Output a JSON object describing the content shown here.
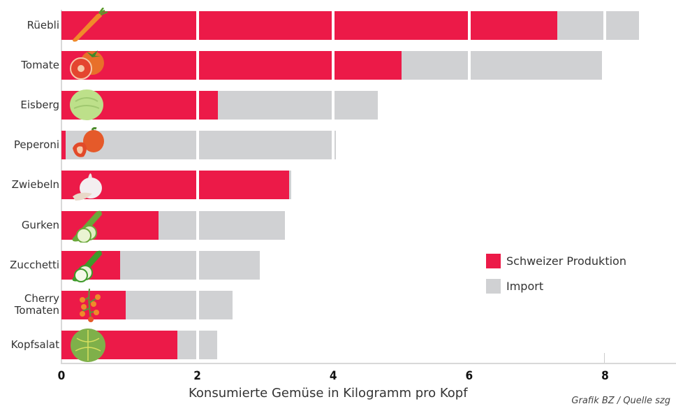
{
  "chart_data": {
    "type": "bar",
    "orientation": "horizontal",
    "stacked": true,
    "title": "",
    "xlabel": "Konsumierte Gemüse in Kilogramm pro Kopf",
    "ylabel": "",
    "xlim": [
      0,
      9
    ],
    "xticks": [
      "0",
      "2",
      "4",
      "6",
      "8"
    ],
    "categories": [
      "Rüebli",
      "Tomate",
      "Eisberg",
      "Peperoni",
      "Zwiebeln",
      "Gurken",
      "Zucchetti",
      "Cherry\nTomaten",
      "Kopfsalat"
    ],
    "series": [
      {
        "name": "Schweizer Produktion",
        "color": "#ec1a48",
        "values": [
          7.3,
          5.0,
          2.3,
          0.06,
          3.35,
          1.43,
          0.86,
          0.95,
          1.71
        ]
      },
      {
        "name": "Import",
        "color": "#d0d1d3",
        "values": [
          1.2,
          2.95,
          2.36,
          3.98,
          0.03,
          1.86,
          2.06,
          1.57,
          0.58
        ]
      }
    ],
    "totals": [
      8.5,
      7.95,
      4.66,
      4.04,
      3.38,
      3.29,
      2.92,
      2.52,
      2.29
    ],
    "legend_position": "right-middle",
    "grid": "vertical white gridlines at 2,4,6,8",
    "credit": "Grafik BZ / Quelle szg"
  },
  "legend": [
    {
      "label": "Schweizer Produktion",
      "color": "#ec1a48"
    },
    {
      "label": "Import",
      "color": "#d0d1d3"
    }
  ],
  "icons": [
    "carrot-icon",
    "tomato-icon",
    "iceberg-lettuce-icon",
    "bell-pepper-icon",
    "garlic-onion-icon",
    "cucumber-icon",
    "zucchini-icon",
    "cherry-tomatoes-icon",
    "head-lettuce-icon"
  ]
}
